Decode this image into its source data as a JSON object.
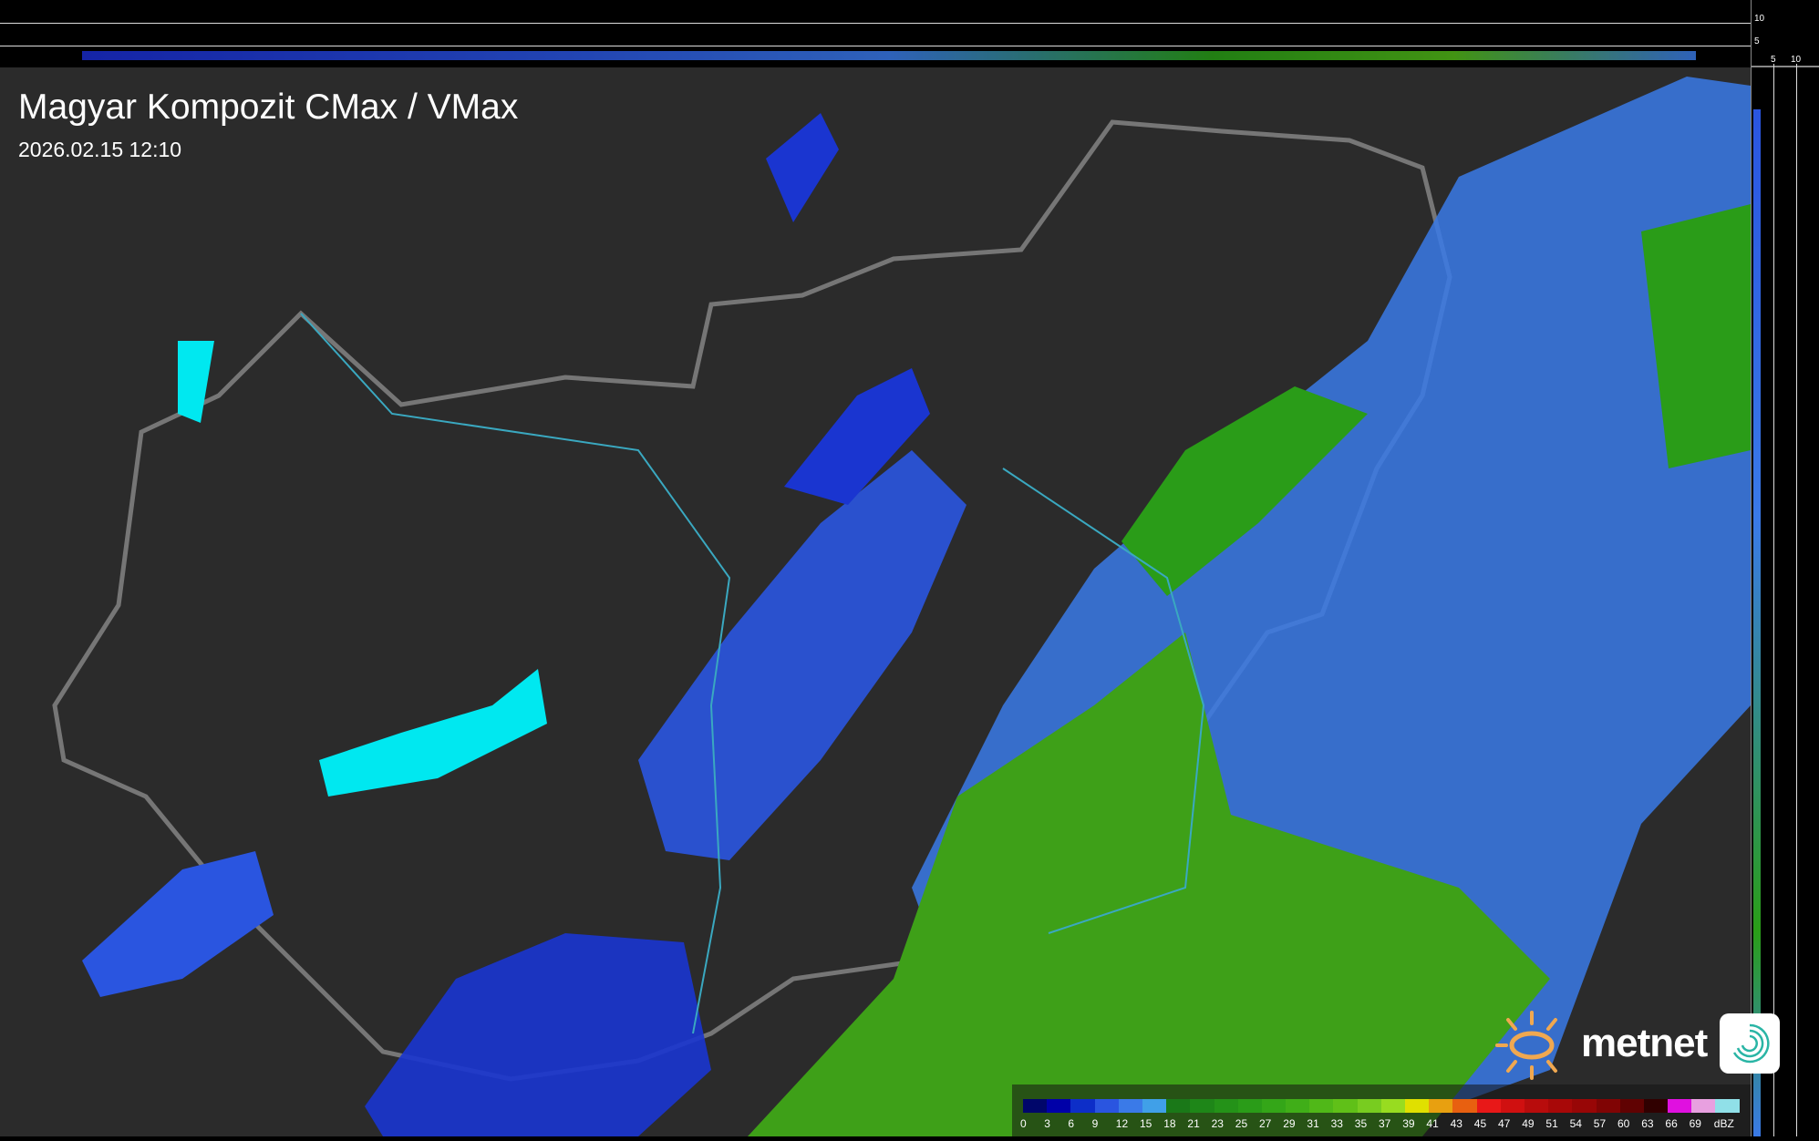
{
  "header": {
    "title": "Magyar Kompozit CMax / VMax",
    "timestamp": "2026.02.15 12:10"
  },
  "side_scale": {
    "vertical_ticks": [
      "10",
      "5"
    ],
    "horizontal_ticks": [
      "5",
      "10"
    ]
  },
  "legend": {
    "unit": "dBZ",
    "labels": [
      "0",
      "3",
      "6",
      "9",
      "12",
      "15",
      "18",
      "21",
      "23",
      "25",
      "27",
      "29",
      "31",
      "33",
      "35",
      "37",
      "39",
      "41",
      "43",
      "45",
      "47",
      "49",
      "51",
      "54",
      "57",
      "60",
      "63",
      "66",
      "69"
    ],
    "colors": [
      "#00066a",
      "#0000a8",
      "#0d2ec8",
      "#2a55e0",
      "#3a7ae8",
      "#40a0e8",
      "#1a7818",
      "#1e8618",
      "#249218",
      "#2a9c18",
      "#34a618",
      "#40ae18",
      "#50b818",
      "#60c018",
      "#78cc20",
      "#98dc20",
      "#e0e000",
      "#e8a010",
      "#e86010",
      "#e81818",
      "#d01010",
      "#b80c0c",
      "#a80808",
      "#980606",
      "#800404",
      "#600202",
      "#300000",
      "#e010e0",
      "#e8a0e0",
      "#90e0e8"
    ]
  },
  "branding": {
    "logo_text": "metnet",
    "sun_color": "#f0a850",
    "icon_color": "#2ab5a5"
  },
  "colors": {
    "background": "#2b2b2b",
    "border": "#8a8a8a",
    "rivers": "#3aa8c0",
    "lakes": "#00e8f0"
  }
}
